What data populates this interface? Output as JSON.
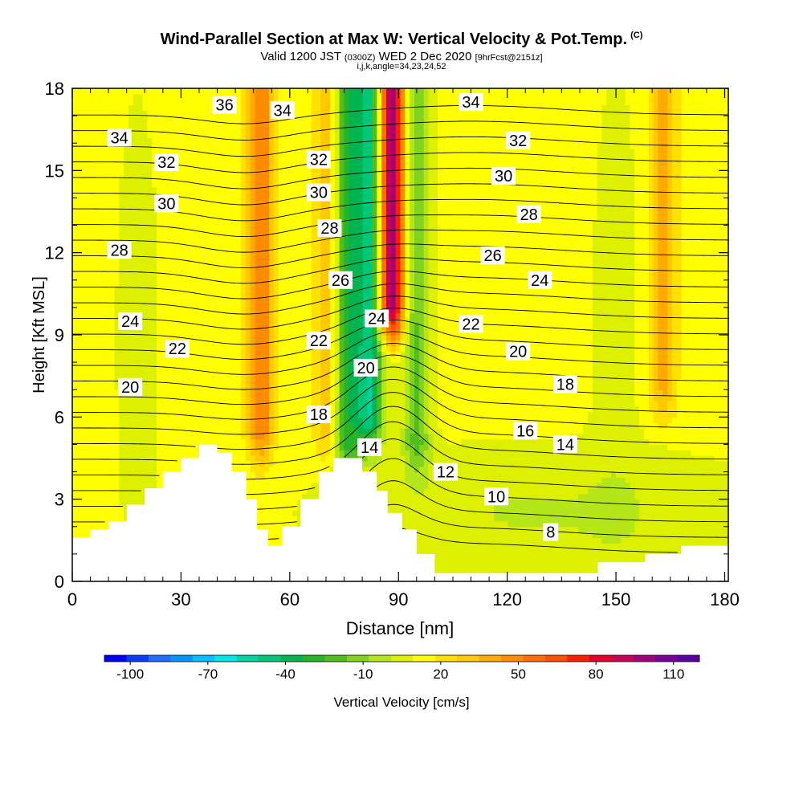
{
  "header": {
    "title": "Wind-Parallel Section at Max W: Vertical Velocity & Pot.Temp.",
    "copyright": "(C)",
    "subtitle_valid": "Valid 1200 JST",
    "subtitle_utc": "(0300Z)",
    "subtitle_date": "WED 2 Dec 2020",
    "subtitle_fcst": "[9hrFcst@2151z]",
    "subtitle_ijk": "i,j,k,angle=34,23,24,52"
  },
  "chart_data": {
    "type": "heatmap",
    "xlabel": "Distance [nm]",
    "ylabel": "Height [Kft MSL]",
    "xlim": [
      0,
      181
    ],
    "ylim": [
      0,
      18
    ],
    "x_ticks": [
      0,
      30,
      60,
      90,
      120,
      150,
      180
    ],
    "x_tick_labels": [
      "0",
      "30",
      "60",
      "90",
      "120",
      "150",
      "180"
    ],
    "y_ticks": [
      0,
      3,
      6,
      9,
      12,
      15,
      18
    ],
    "y_tick_labels": [
      "0",
      "3",
      "6",
      "9",
      "12",
      "15",
      "18"
    ],
    "grid": false,
    "colorbar": {
      "label": "Vertical Velocity [cm/s]",
      "placement": "bottom",
      "min": -110,
      "max": 120,
      "tick_values": [
        -100,
        -70,
        -40,
        -10,
        20,
        50,
        80,
        110
      ],
      "tick_labels": [
        "-100",
        "-70",
        "-40",
        "-10",
        "20",
        "50",
        "80",
        "110"
      ],
      "colors": [
        "#0000ff",
        "#0a3cff",
        "#1e6eff",
        "#0096ff",
        "#00beff",
        "#00e6e6",
        "#00d2a0",
        "#00c878",
        "#00b450",
        "#28b428",
        "#50be1e",
        "#82d21e",
        "#b4e619",
        "#dcf000",
        "#ffff00",
        "#ffe100",
        "#ffc800",
        "#ffaa00",
        "#ff8c00",
        "#ff6e00",
        "#ff5000",
        "#ff1e00",
        "#e6002d",
        "#c8005a",
        "#a00078",
        "#780096",
        "#5a00a0"
      ]
    },
    "vertical_velocity_features": [
      {
        "x": 52,
        "y_range": [
          4.5,
          18
        ],
        "w": 40,
        "description": "updraft"
      },
      {
        "x": 70,
        "y_range": [
          4.5,
          18
        ],
        "w": 20,
        "description": "updraft"
      },
      {
        "x": 76,
        "y_range": [
          4.0,
          18
        ],
        "w": -40,
        "description": "downdraft"
      },
      {
        "x": 82,
        "y_range": [
          5.0,
          18
        ],
        "w": -60,
        "description": "downdraft"
      },
      {
        "x": 88,
        "y_range": [
          9.0,
          18
        ],
        "w": 90,
        "description": "updraft"
      },
      {
        "x": 95,
        "y_range": [
          4.0,
          18
        ],
        "w": -30,
        "description": "downdraft"
      },
      {
        "x": 163,
        "y_range": [
          6.0,
          18
        ],
        "w": 25,
        "description": "updraft"
      }
    ],
    "terrain_profile": [
      [
        0,
        1.6
      ],
      [
        5,
        1.6
      ],
      [
        5,
        1.9
      ],
      [
        10,
        1.9
      ],
      [
        10,
        2.2
      ],
      [
        15,
        2.2
      ],
      [
        15,
        2.8
      ],
      [
        20,
        2.8
      ],
      [
        20,
        3.4
      ],
      [
        25,
        3.4
      ],
      [
        25,
        4.0
      ],
      [
        30,
        4.0
      ],
      [
        30,
        4.5
      ],
      [
        35,
        4.5
      ],
      [
        35,
        5.0
      ],
      [
        40,
        5.0
      ],
      [
        40,
        4.7
      ],
      [
        44,
        4.7
      ],
      [
        44,
        4.0
      ],
      [
        48,
        4.0
      ],
      [
        48,
        3.0
      ],
      [
        51,
        3.0
      ],
      [
        51,
        1.9
      ],
      [
        54,
        1.9
      ],
      [
        54,
        1.3
      ],
      [
        58,
        1.3
      ],
      [
        58,
        2.0
      ],
      [
        63,
        2.0
      ],
      [
        63,
        3.0
      ],
      [
        68,
        3.0
      ],
      [
        68,
        4.0
      ],
      [
        72,
        4.0
      ],
      [
        72,
        4.5
      ],
      [
        80,
        4.5
      ],
      [
        80,
        4.0
      ],
      [
        84,
        4.0
      ],
      [
        84,
        3.3
      ],
      [
        87,
        3.3
      ],
      [
        87,
        2.5
      ],
      [
        91,
        2.5
      ],
      [
        91,
        1.9
      ],
      [
        95,
        1.9
      ],
      [
        95,
        1.0
      ],
      [
        100,
        1.0
      ],
      [
        100,
        0.3
      ],
      [
        145,
        0.3
      ],
      [
        145,
        0.7
      ],
      [
        158,
        0.7
      ],
      [
        158,
        1.0
      ],
      [
        168,
        1.0
      ],
      [
        168,
        1.3
      ],
      [
        181,
        1.3
      ]
    ],
    "theta_contours": {
      "levels": [
        8,
        9,
        10,
        11,
        12,
        13,
        14,
        15,
        16,
        17,
        18,
        19,
        20,
        21,
        22,
        23,
        24,
        25,
        26,
        27,
        28,
        29,
        30,
        31,
        32,
        33,
        34,
        35,
        36
      ],
      "labels": [
        {
          "text": "36",
          "x": 42,
          "y": 17.4
        },
        {
          "text": "34",
          "x": 13,
          "y": 16.2
        },
        {
          "text": "34",
          "x": 58,
          "y": 17.2
        },
        {
          "text": "34",
          "x": 110,
          "y": 17.5
        },
        {
          "text": "32",
          "x": 26,
          "y": 15.3
        },
        {
          "text": "32",
          "x": 68,
          "y": 15.4
        },
        {
          "text": "32",
          "x": 123,
          "y": 16.1
        },
        {
          "text": "30",
          "x": 26,
          "y": 13.8
        },
        {
          "text": "30",
          "x": 68,
          "y": 14.2
        },
        {
          "text": "30",
          "x": 119,
          "y": 14.8
        },
        {
          "text": "28",
          "x": 13,
          "y": 12.1
        },
        {
          "text": "28",
          "x": 71,
          "y": 12.9
        },
        {
          "text": "28",
          "x": 126,
          "y": 13.4
        },
        {
          "text": "26",
          "x": 74,
          "y": 11.0
        },
        {
          "text": "26",
          "x": 116,
          "y": 11.9
        },
        {
          "text": "24",
          "x": 16,
          "y": 9.5
        },
        {
          "text": "24",
          "x": 84,
          "y": 9.6
        },
        {
          "text": "24",
          "x": 129,
          "y": 11.0
        },
        {
          "text": "22",
          "x": 29,
          "y": 8.5
        },
        {
          "text": "22",
          "x": 68,
          "y": 8.8
        },
        {
          "text": "22",
          "x": 110,
          "y": 9.4
        },
        {
          "text": "20",
          "x": 16,
          "y": 7.1
        },
        {
          "text": "20",
          "x": 81,
          "y": 7.8
        },
        {
          "text": "20",
          "x": 123,
          "y": 8.4
        },
        {
          "text": "18",
          "x": 68,
          "y": 6.1
        },
        {
          "text": "18",
          "x": 136,
          "y": 7.2
        },
        {
          "text": "16",
          "x": 125,
          "y": 5.5
        },
        {
          "text": "14",
          "x": 82,
          "y": 4.9
        },
        {
          "text": "14",
          "x": 136,
          "y": 5.0
        },
        {
          "text": "12",
          "x": 103,
          "y": 4.0
        },
        {
          "text": "10",
          "x": 117,
          "y": 3.1
        },
        {
          "text": "8",
          "x": 132,
          "y": 1.8
        }
      ]
    }
  }
}
